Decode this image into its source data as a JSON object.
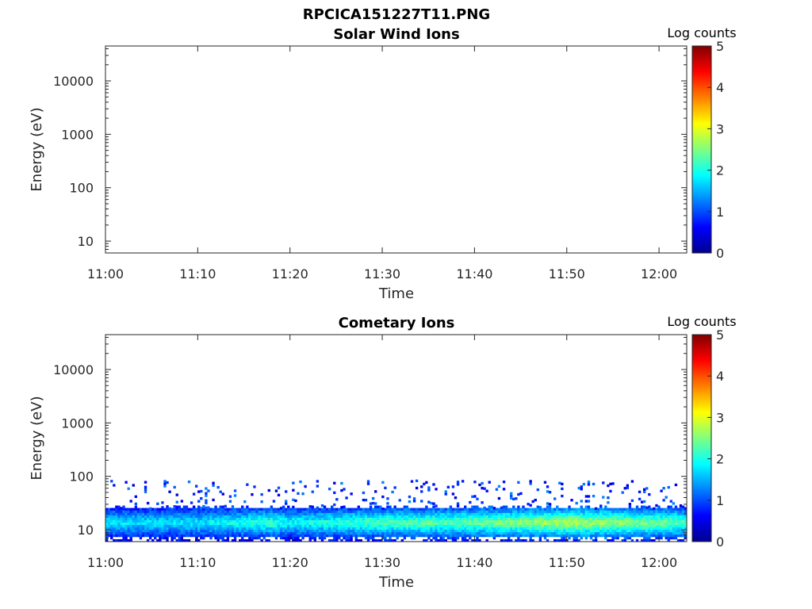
{
  "figure_title": "RPCICA151227T11.PNG",
  "chart_data": [
    {
      "type": "heatmap",
      "title": "Solar Wind Ions",
      "xlabel": "Time",
      "ylabel": "Energy (eV)",
      "x_ticks": [
        "11:00",
        "11:10",
        "11:20",
        "11:30",
        "11:40",
        "11:50",
        "12:00"
      ],
      "x_range": [
        "11:00",
        "12:03"
      ],
      "y_scale": "log",
      "y_ticks": [
        "10",
        "100",
        "1000",
        "10000"
      ],
      "y_range": [
        6,
        45000
      ],
      "colorbar": {
        "label": "Log counts",
        "range": [
          0,
          5
        ],
        "ticks": [
          "0",
          "1",
          "2",
          "3",
          "4",
          "5"
        ],
        "colormap": "jet"
      },
      "values": "no counts recorded (empty panel)"
    },
    {
      "type": "heatmap",
      "title": "Cometary Ions",
      "xlabel": "Time",
      "ylabel": "Energy (eV)",
      "x_ticks": [
        "11:00",
        "11:10",
        "11:20",
        "11:30",
        "11:40",
        "11:50",
        "12:00"
      ],
      "x_range": [
        "11:00",
        "12:03"
      ],
      "y_scale": "log",
      "y_ticks": [
        "10",
        "100",
        "1000",
        "10000"
      ],
      "y_range": [
        6,
        45000
      ],
      "colorbar": {
        "label": "Log counts",
        "range": [
          0,
          5
        ],
        "ticks": [
          "0",
          "1",
          "2",
          "3",
          "4",
          "5"
        ],
        "colormap": "jet"
      },
      "band": {
        "energy_range_eV": [
          6,
          25
        ],
        "peak_energy_eV": 13,
        "sparse_counts_up_to_eV": 80,
        "peak_log_counts_by_time": [
          [
            "11:00",
            1.8
          ],
          [
            "11:10",
            1.8
          ],
          [
            "11:18",
            2.2
          ],
          [
            "11:20",
            1.9
          ],
          [
            "11:30",
            2.3
          ],
          [
            "11:40",
            2.4
          ],
          [
            "11:50",
            2.8
          ],
          [
            "12:00",
            2.5
          ],
          [
            "12:03",
            2.3
          ]
        ]
      }
    }
  ]
}
